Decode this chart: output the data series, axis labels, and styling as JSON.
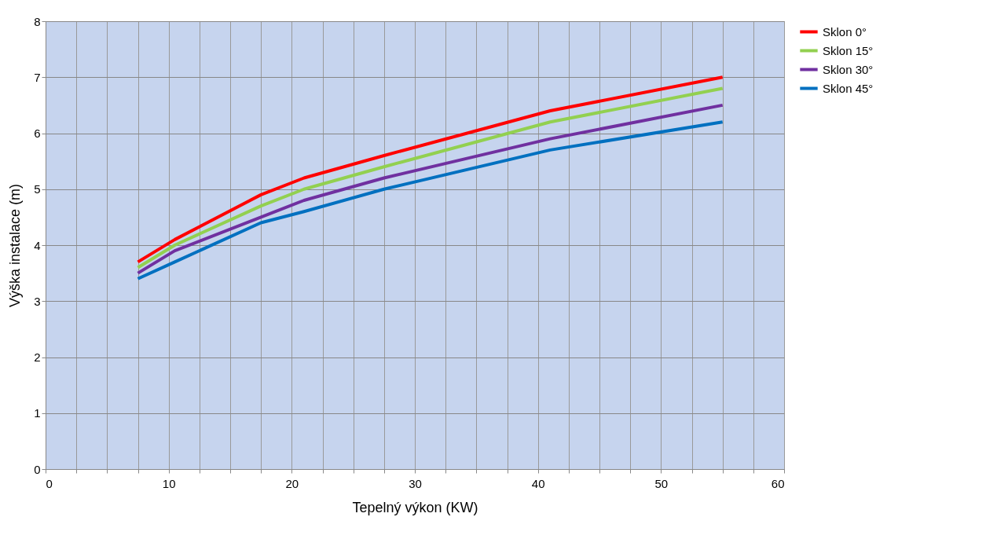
{
  "chart_data": {
    "type": "line",
    "xlabel": "Tepelný výkon (KW)",
    "ylabel": "Výška instalace (m)",
    "x": [
      7.5,
      10.5,
      17.5,
      21,
      27.5,
      41,
      55
    ],
    "series": [
      {
        "name": "Sklon 0°",
        "color": "#ff0000",
        "values": [
          3.7,
          4.1,
          4.9,
          5.2,
          5.6,
          6.4,
          7.0
        ]
      },
      {
        "name": "Sklon 15°",
        "color": "#92d050",
        "values": [
          3.6,
          4.0,
          4.7,
          5.0,
          5.4,
          6.2,
          6.8
        ]
      },
      {
        "name": "Sklon 30°",
        "color": "#7030a0",
        "values": [
          3.5,
          3.9,
          4.5,
          4.8,
          5.2,
          5.9,
          6.5
        ]
      },
      {
        "name": "Sklon 45°",
        "color": "#0070c0",
        "values": [
          3.4,
          3.7,
          4.4,
          4.6,
          5.0,
          5.7,
          6.2
        ]
      }
    ],
    "xlim": [
      0,
      60
    ],
    "xticks": [
      0,
      {
        "value": 2.5,
        "label": null
      },
      {
        "value": 5,
        "label": null
      },
      {
        "value": 7.5,
        "label": null
      },
      10,
      {
        "value": 12.5,
        "label": null
      },
      {
        "value": 15,
        "label": null
      },
      {
        "value": 17.5,
        "label": null
      },
      20,
      {
        "value": 22.5,
        "label": null
      },
      {
        "value": 25,
        "label": null
      },
      {
        "value": 27.5,
        "label": null
      },
      30,
      {
        "value": 32.5,
        "label": null
      },
      {
        "value": 35,
        "label": null
      },
      {
        "value": 37.5,
        "label": null
      },
      40,
      {
        "value": 42.5,
        "label": null
      },
      {
        "value": 45,
        "label": null
      },
      {
        "value": 47.5,
        "label": null
      },
      50,
      {
        "value": 52.5,
        "label": null
      },
      {
        "value": 55,
        "label": null
      },
      {
        "value": 57.5,
        "label": null
      },
      60
    ],
    "ylim": [
      0,
      8
    ],
    "yticks": [
      0,
      1,
      2,
      3,
      4,
      5,
      6,
      7,
      8
    ],
    "grid": true,
    "legend": "right",
    "marker": "none",
    "line_style": "solid"
  }
}
